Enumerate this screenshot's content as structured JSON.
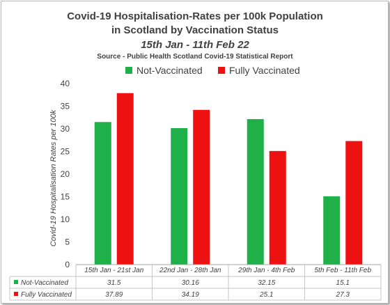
{
  "chart_data": {
    "type": "bar",
    "title": "Covid-19 Hospitalisation-Rates per 100k Population",
    "title_line2": "in Scotland by Vaccination Status",
    "subtitle": "15th Jan - 11th Feb 22",
    "source": "Source - Public Health Scotland Covid-19 Statistical Report",
    "ylabel": "Covid-19 Hospitalisation Rates per 100k",
    "xlabel": "",
    "ylim": [
      0,
      40
    ],
    "yticks": [
      0,
      5,
      10,
      15,
      20,
      25,
      30,
      35,
      40
    ],
    "grid": false,
    "legend_position": "top",
    "data_table": true,
    "categories": [
      "15th Jan - 21st Jan",
      "22nd Jan - 28th Jan",
      "29th Jan - 4th Feb",
      "5th Feb - 11th Feb"
    ],
    "series": [
      {
        "name": "Not-Vaccinated",
        "color": "#1fb04a",
        "values": [
          31.5,
          30.16,
          32.15,
          15.1
        ],
        "labels": [
          "31.5",
          "30.16",
          "32.15",
          "15.1"
        ]
      },
      {
        "name": "Fully Vaccinated",
        "color": "#ee1111",
        "values": [
          37.89,
          34.19,
          25.1,
          27.3
        ],
        "labels": [
          "37.89",
          "34.19",
          "25.1",
          "27.3"
        ]
      }
    ]
  }
}
